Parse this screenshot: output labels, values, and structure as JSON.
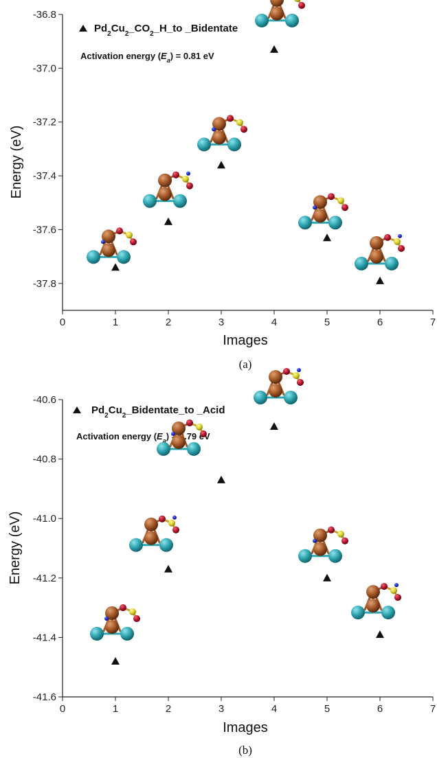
{
  "chart_data": [
    {
      "type": "scatter",
      "panel_label": "(a)",
      "xlabel": "Images",
      "ylabel": "Energy (eV)",
      "xlim": [
        0,
        7
      ],
      "ylim": [
        -37.9,
        -36.8
      ],
      "x_ticks": [
        "0",
        "1",
        "2",
        "3",
        "4",
        "5",
        "6",
        "7"
      ],
      "y_ticks": [
        "-36.8",
        "-37.0",
        "-37.2",
        "-37.4",
        "-37.6",
        "-37.8"
      ],
      "y_tick_values": [
        -36.8,
        -37.0,
        -37.2,
        -37.4,
        -37.6,
        -37.8
      ],
      "grid": false,
      "legend_position": "top-left",
      "series": [
        {
          "name": "Pd2Cu2_CO2_H_to _Bidentate",
          "marker": "triangle",
          "color": "#111111",
          "x": [
            1,
            2,
            3,
            4,
            5,
            6
          ],
          "y": [
            -37.74,
            -37.57,
            -37.36,
            -36.93,
            -37.63,
            -37.79
          ]
        }
      ],
      "legend": {
        "prefix": "Pd",
        "sub1": "2",
        "part2": "Cu",
        "sub2": "2",
        "part3": "_CO",
        "sub3": "2",
        "part4": "_H_to _Bidentate"
      },
      "annotation": {
        "prefix": "Activation energy (",
        "symbol": "E",
        "subscript": "a",
        "suffix": ") = 0.81 eV"
      }
    },
    {
      "type": "scatter",
      "panel_label": "(b)",
      "xlabel": "Images",
      "ylabel": "Energy (eV)",
      "xlim": [
        0,
        7
      ],
      "ylim": [
        -41.6,
        -40.6
      ],
      "x_ticks": [
        "0",
        "1",
        "2",
        "3",
        "4",
        "5",
        "6",
        "7"
      ],
      "y_ticks": [
        "-40.6",
        "-40.8",
        "-41.0",
        "-41.2",
        "-41.4",
        "-41.6"
      ],
      "y_tick_values": [
        -40.6,
        -40.8,
        -41.0,
        -41.2,
        -41.4,
        -41.6
      ],
      "grid": false,
      "legend_position": "top-left",
      "series": [
        {
          "name": "Pd2Cu2_Bidentate_to _Acid",
          "marker": "triangle",
          "color": "#111111",
          "x": [
            1,
            2,
            3,
            4,
            5,
            6
          ],
          "y": [
            -41.48,
            -41.17,
            -40.87,
            -40.69,
            -41.2,
            -41.39
          ]
        }
      ],
      "legend": {
        "prefix": "Pd",
        "sub1": "2",
        "part2": "Cu",
        "sub2": "2",
        "part3": "_Bidentate_to _Acid",
        "sub3": "",
        "part4": ""
      },
      "annotation": {
        "prefix": "Activation energy (",
        "symbol": "E",
        "subscript": "a",
        "suffix": ") = 0.79 eV"
      }
    }
  ],
  "colors": {
    "pd_atom": "#a65a2a",
    "cu_atom": "#2fa5b0",
    "o_atom": "#b0142a",
    "c_atom": "#d9cf2a",
    "h_atom": "#1a2ad0",
    "marker": "#111111"
  }
}
